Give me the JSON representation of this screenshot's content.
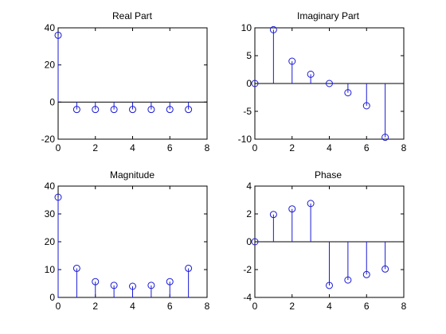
{
  "colors": {
    "stem": "#1a1ad6",
    "axis": "#000000",
    "background": "#ffffff"
  },
  "chart_data": [
    {
      "type": "stem",
      "title": "Real Part",
      "xlim": [
        0,
        8
      ],
      "ylim": [
        -20,
        40
      ],
      "xticks": [
        0,
        2,
        4,
        6,
        8
      ],
      "yticks": [
        -20,
        0,
        20,
        40
      ],
      "x": [
        0,
        1,
        2,
        3,
        4,
        5,
        6,
        7
      ],
      "y": [
        36,
        -4,
        -4,
        -4,
        -4,
        -4,
        -4,
        -4
      ],
      "zero_line": true
    },
    {
      "type": "stem",
      "title": "Imaginary Part",
      "xlim": [
        0,
        8
      ],
      "ylim": [
        -10,
        10
      ],
      "xticks": [
        0,
        2,
        4,
        6,
        8
      ],
      "yticks": [
        -10,
        -5,
        0,
        5,
        10
      ],
      "x": [
        0,
        1,
        2,
        3,
        4,
        5,
        6,
        7
      ],
      "y": [
        0,
        9.66,
        4,
        1.66,
        0,
        -1.66,
        -4,
        -9.66
      ],
      "zero_line": true
    },
    {
      "type": "stem",
      "title": "Magnitude",
      "xlim": [
        0,
        8
      ],
      "ylim": [
        0,
        40
      ],
      "xticks": [
        0,
        2,
        4,
        6,
        8
      ],
      "yticks": [
        0,
        10,
        20,
        30,
        40
      ],
      "x": [
        0,
        1,
        2,
        3,
        4,
        5,
        6,
        7
      ],
      "y": [
        36,
        10.45,
        5.66,
        4.33,
        4,
        4.33,
        5.66,
        10.45
      ],
      "zero_line": false
    },
    {
      "type": "stem",
      "title": "Phase",
      "xlim": [
        0,
        8
      ],
      "ylim": [
        -4,
        4
      ],
      "xticks": [
        0,
        2,
        4,
        6,
        8
      ],
      "yticks": [
        -4,
        -2,
        0,
        2,
        4
      ],
      "x": [
        0,
        1,
        2,
        3,
        4,
        5,
        6,
        7
      ],
      "y": [
        0,
        1.96,
        2.36,
        2.75,
        -3.14,
        -2.75,
        -2.36,
        -1.96
      ],
      "zero_line": true
    }
  ]
}
